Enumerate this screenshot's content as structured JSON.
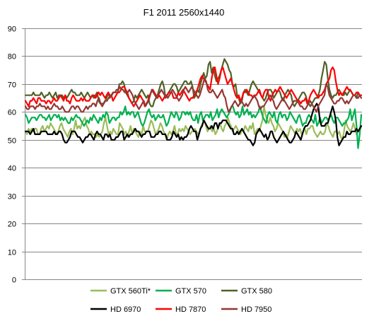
{
  "chart_data": {
    "type": "line",
    "title": "F1 2011 2560x1440",
    "xlabel": "",
    "ylabel": "",
    "ylim": [
      0,
      90
    ],
    "yticks": [
      0,
      10,
      20,
      30,
      40,
      50,
      60,
      70,
      80,
      90
    ],
    "grid": true,
    "legend_position": "bottom",
    "series": [
      {
        "name": "GTX 560Ti*",
        "color": "#9bbb59",
        "values": [
          53,
          52,
          54,
          53,
          54,
          53,
          54,
          54,
          52,
          52,
          54,
          55,
          53,
          54,
          55,
          54,
          56,
          55,
          54,
          53,
          52,
          53,
          55,
          56,
          54,
          53,
          52,
          51,
          53,
          54,
          52,
          54,
          57,
          54,
          55,
          54,
          56,
          57,
          58,
          55,
          54,
          52,
          53,
          52,
          52,
          51,
          52,
          51,
          52,
          53,
          56,
          58,
          55,
          52,
          53,
          52,
          54,
          53,
          52,
          52,
          56,
          55,
          54,
          52,
          53,
          51,
          53,
          55,
          52,
          54,
          53,
          52,
          51,
          53,
          52,
          55,
          53,
          53,
          53,
          55,
          57,
          56,
          54,
          52,
          53,
          54,
          56,
          55,
          53,
          52,
          50,
          52,
          53,
          52,
          53,
          55,
          52,
          52,
          54,
          53,
          54,
          53,
          55,
          54,
          53,
          52,
          53,
          53,
          54,
          53,
          52,
          53,
          55,
          56,
          57,
          55,
          53,
          54,
          55,
          53,
          54,
          52,
          53,
          55,
          56,
          54,
          53,
          55,
          56,
          58,
          56,
          55,
          53,
          54,
          55,
          54,
          53,
          52,
          54,
          53,
          55,
          54,
          53,
          55,
          54,
          56,
          52,
          53,
          54,
          53,
          55,
          57,
          62,
          59,
          57,
          56,
          58,
          56,
          55,
          53,
          54,
          56,
          55,
          54,
          53,
          51,
          52,
          51,
          53,
          55,
          54,
          53,
          52,
          54,
          53,
          54,
          52,
          53,
          54,
          52,
          54,
          54,
          55,
          55,
          53,
          52,
          51,
          52,
          53,
          52,
          52,
          53,
          56,
          55,
          53,
          52,
          51,
          53,
          53,
          52,
          53,
          51,
          50,
          53,
          57,
          55,
          54,
          53,
          54,
          56,
          54,
          52,
          53,
          53,
          55
        ]
      },
      {
        "name": "GTX 570",
        "color": "#00b050",
        "values": [
          59,
          58,
          56,
          57,
          58,
          58,
          58,
          57,
          58,
          59,
          59,
          58,
          58,
          57,
          58,
          59,
          57,
          58,
          59,
          59,
          58,
          59,
          57,
          58,
          57,
          58,
          57,
          56,
          56,
          58,
          57,
          58,
          59,
          58,
          58,
          57,
          56,
          55,
          56,
          57,
          56,
          58,
          57,
          59,
          58,
          57,
          56,
          58,
          57,
          59,
          58,
          60,
          59,
          56,
          57,
          58,
          58,
          57,
          58,
          58,
          60,
          59,
          60,
          62,
          59,
          60,
          59,
          60,
          60,
          58,
          59,
          60,
          58,
          56,
          55,
          56,
          58,
          60,
          61,
          59,
          58,
          59,
          57,
          58,
          59,
          58,
          58,
          59,
          57,
          55,
          56,
          58,
          60,
          59,
          58,
          60,
          59,
          57,
          58,
          60,
          60,
          59,
          60,
          59,
          60,
          58,
          57,
          57,
          59,
          56,
          59,
          60,
          57,
          58,
          59,
          59,
          58,
          60,
          57,
          58,
          59,
          61,
          58,
          60,
          61,
          60,
          59,
          58,
          59,
          60,
          62,
          62,
          60,
          59,
          60,
          58,
          59,
          62,
          59,
          60,
          61,
          59,
          60,
          58,
          59,
          58,
          59,
          60,
          62,
          60,
          58,
          57,
          56,
          59,
          60,
          59,
          58,
          60,
          57,
          56,
          59,
          60,
          58,
          59,
          59,
          57,
          58,
          60,
          59,
          58,
          57,
          56,
          58,
          59,
          57,
          55,
          56,
          56,
          58,
          59,
          58,
          57,
          56,
          59,
          55,
          56,
          58,
          56,
          57,
          58,
          58,
          57,
          58,
          59,
          57,
          56,
          58,
          58,
          57,
          56,
          55,
          56,
          56,
          57,
          58,
          61,
          57,
          59,
          61,
          55,
          47,
          52,
          59
        ]
      },
      {
        "name": "GTX 580",
        "color": "#4f6228",
        "values": [
          66,
          66,
          66,
          66,
          66,
          67,
          66,
          66,
          66,
          66,
          67,
          66,
          65,
          66,
          66,
          67,
          66,
          65,
          66,
          67,
          65,
          66,
          66,
          66,
          65,
          66,
          65,
          66,
          67,
          68,
          67,
          67,
          66,
          66,
          66,
          67,
          66,
          65,
          66,
          67,
          66,
          65,
          66,
          65,
          66,
          67,
          64,
          63,
          63,
          63,
          64,
          65,
          67,
          65,
          66,
          67,
          67,
          67,
          67,
          70,
          70,
          71,
          70,
          67,
          66,
          65,
          64,
          63,
          64,
          66,
          65,
          66,
          67,
          68,
          67,
          66,
          65,
          66,
          63,
          62,
          62,
          64,
          65,
          66,
          68,
          70,
          71,
          69,
          65,
          66,
          67,
          68,
          69,
          70,
          70,
          69,
          67,
          68,
          69,
          70,
          71,
          71,
          70,
          70,
          71,
          69,
          65,
          66,
          68,
          67,
          70,
          72,
          74,
          72,
          73,
          77,
          78,
          74,
          76,
          73,
          71,
          72,
          73,
          75,
          77,
          79,
          78,
          77,
          75,
          74,
          70,
          69,
          70,
          66,
          65,
          63,
          64,
          67,
          68,
          67,
          66,
          68,
          70,
          71,
          70,
          69,
          68,
          67,
          66,
          65,
          64,
          65,
          67,
          68,
          68,
          67,
          65,
          66,
          67,
          68,
          67,
          65,
          64,
          66,
          67,
          68,
          67,
          66,
          63,
          62,
          63,
          64,
          65,
          66,
          67,
          67,
          66,
          64,
          63,
          62,
          63,
          64,
          65,
          65,
          66,
          68,
          72,
          75,
          78,
          77,
          72,
          68,
          66,
          65,
          66,
          66,
          67,
          68,
          67,
          66,
          66,
          67,
          66,
          67,
          68,
          67,
          66,
          66,
          65,
          67,
          66,
          66
        ]
      },
      {
        "name": "HD 6970",
        "color": "#000000",
        "values": [
          53,
          53,
          53,
          52,
          53,
          54,
          52,
          52,
          52,
          52,
          53,
          53,
          53,
          53,
          52,
          52,
          52,
          52,
          53,
          52,
          52,
          53,
          53,
          52,
          50,
          49,
          49,
          50,
          51,
          53,
          53,
          53,
          52,
          51,
          51,
          50,
          49,
          50,
          51,
          51,
          52,
          52,
          51,
          50,
          52,
          53,
          52,
          52,
          51,
          50,
          52,
          52,
          51,
          52,
          50,
          50,
          50,
          51,
          51,
          52,
          53,
          53,
          50,
          51,
          52,
          51,
          52,
          52,
          53,
          54,
          53,
          53,
          52,
          51,
          52,
          52,
          53,
          53,
          53,
          51,
          51,
          51,
          52,
          52,
          53,
          53,
          52,
          52,
          52,
          50,
          50,
          50,
          51,
          53,
          52,
          51,
          52,
          50,
          51,
          50,
          51,
          51,
          52,
          54,
          55,
          54,
          53,
          53,
          50,
          52,
          54,
          55,
          57,
          56,
          55,
          54,
          54,
          55,
          54,
          56,
          56,
          54,
          56,
          56,
          57,
          57,
          57,
          56,
          55,
          54,
          54,
          52,
          52,
          53,
          52,
          53,
          54,
          53,
          52,
          51,
          50,
          50,
          49,
          48,
          49,
          52,
          53,
          54,
          53,
          52,
          51,
          52,
          50,
          51,
          53,
          53,
          51,
          50,
          49,
          50,
          51,
          52,
          53,
          52,
          51,
          50,
          49,
          49,
          50,
          51,
          53,
          52,
          51,
          50,
          52,
          54,
          55,
          55,
          56,
          57,
          59,
          61,
          62,
          63,
          62,
          57,
          55,
          55,
          55,
          56,
          56,
          58,
          60,
          62,
          60,
          57,
          51,
          48,
          49,
          50,
          51,
          51,
          53,
          52,
          52,
          53,
          53,
          53,
          54,
          53,
          54,
          55
        ]
      },
      {
        "name": "HD 7870",
        "color": "#ff0000",
        "values": [
          64,
          63,
          62,
          64,
          64,
          65,
          64,
          63,
          65,
          65,
          64,
          64,
          64,
          63,
          64,
          64,
          63,
          64,
          65,
          64,
          64,
          65,
          66,
          65,
          64,
          66,
          64,
          64,
          63,
          65,
          66,
          65,
          64,
          64,
          64,
          65,
          64,
          65,
          64,
          64,
          64,
          65,
          66,
          66,
          65,
          66,
          67,
          66,
          67,
          66,
          65,
          66,
          67,
          66,
          66,
          64,
          65,
          66,
          67,
          67,
          68,
          69,
          69,
          68,
          67,
          65,
          64,
          63,
          62,
          63,
          64,
          65,
          66,
          65,
          64,
          62,
          63,
          64,
          66,
          67,
          68,
          67,
          66,
          65,
          66,
          65,
          64,
          65,
          66,
          66,
          67,
          67,
          67,
          65,
          65,
          65,
          67,
          66,
          67,
          68,
          67,
          66,
          65,
          64,
          65,
          65,
          66,
          67,
          68,
          70,
          72,
          73,
          72,
          71,
          70,
          69,
          68,
          72,
          75,
          76,
          73,
          70,
          72,
          75,
          76,
          74,
          72,
          70,
          71,
          72,
          70,
          68,
          66,
          65,
          66,
          64,
          65,
          67,
          67,
          68,
          67,
          66,
          66,
          65,
          66,
          66,
          67,
          68,
          66,
          65,
          67,
          68,
          68,
          65,
          64,
          66,
          67,
          68,
          67,
          68,
          69,
          68,
          67,
          66,
          65,
          66,
          67,
          68,
          67,
          66,
          65,
          64,
          64,
          63,
          64,
          64,
          65,
          63,
          64,
          66,
          67,
          68,
          67,
          66,
          65,
          66,
          66,
          67,
          68,
          70,
          71,
          72,
          75,
          76,
          75,
          71,
          68,
          66,
          67,
          66,
          67,
          68,
          69,
          68,
          68,
          67,
          66,
          66,
          67,
          67,
          66,
          66
        ]
      },
      {
        "name": "HD 7950",
        "color": "#953735",
        "values": [
          62,
          61,
          61,
          62,
          62,
          62,
          61,
          62,
          62,
          63,
          62,
          62,
          62,
          61,
          62,
          61,
          61,
          62,
          63,
          62,
          62,
          61,
          61,
          62,
          61,
          60,
          60,
          60,
          61,
          62,
          62,
          61,
          62,
          62,
          61,
          60,
          60,
          61,
          62,
          61,
          62,
          62,
          63,
          63,
          62,
          64,
          65,
          63,
          62,
          63,
          64,
          64,
          65,
          66,
          66,
          67,
          67,
          68,
          68,
          69,
          68,
          68,
          67,
          67,
          67,
          68,
          67,
          66,
          64,
          63,
          62,
          61,
          62,
          63,
          64,
          62,
          63,
          64,
          66,
          68,
          67,
          66,
          65,
          66,
          67,
          68,
          67,
          66,
          66,
          65,
          66,
          67,
          68,
          67,
          66,
          65,
          64,
          65,
          66,
          68,
          69,
          68,
          67,
          68,
          69,
          68,
          67,
          66,
          65,
          66,
          68,
          70,
          72,
          71,
          68,
          67,
          67,
          68,
          67,
          66,
          65,
          66,
          67,
          68,
          66,
          65,
          62,
          60,
          61,
          62,
          63,
          64,
          63,
          62,
          63,
          64,
          63,
          62,
          63,
          62,
          63,
          64,
          65,
          66,
          65,
          64,
          62,
          61,
          62,
          62,
          63,
          64,
          65,
          66,
          65,
          64,
          62,
          61,
          62,
          63,
          64,
          65,
          64,
          63,
          62,
          61,
          62,
          63,
          64,
          64,
          64,
          63,
          62,
          62,
          61,
          61,
          62,
          63,
          64,
          63,
          62,
          61,
          60,
          62,
          63,
          64,
          65,
          66,
          70,
          69,
          66,
          65,
          64,
          63,
          63,
          64,
          64,
          65,
          65,
          64,
          63,
          64,
          63,
          64,
          65,
          66,
          66,
          65,
          65,
          66,
          65
        ]
      }
    ]
  }
}
